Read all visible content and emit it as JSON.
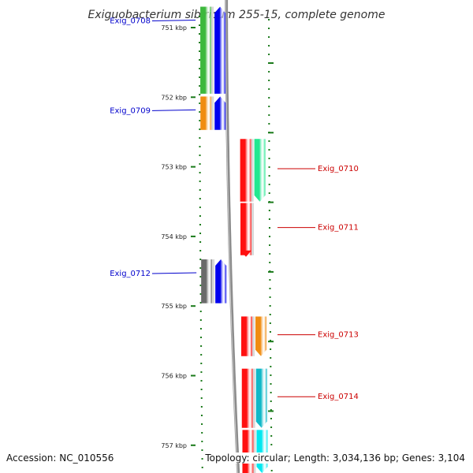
{
  "title": "Exiguobacterium sibiricum 255-15, complete genome",
  "accession": "Accession: NC_010556",
  "summary": "Topology: circular; Length: 3,034,136 bp; Genes: 3,104",
  "colors": {
    "backbone": "#8c8c8c",
    "tick": "#1a7a1a",
    "fwd_label": "#0000cc",
    "rev_label": "#cc0000"
  },
  "scale_labels": [
    "751 kbp",
    "752 kbp",
    "753 kbp",
    "754 kbp",
    "755 kbp",
    "756 kbp",
    "757 kbp"
  ],
  "scale_kbp": [
    751,
    752,
    753,
    754,
    755,
    756,
    757
  ],
  "genes": [
    {
      "name": "Exig_0708",
      "strand": "+",
      "start_kbp": 750.7,
      "end_kbp": 751.95,
      "color": "#3cb83c",
      "cog_color": "#0000ee"
    },
    {
      "name": "Exig_0709",
      "strand": "+",
      "start_kbp": 751.99,
      "end_kbp": 752.47,
      "color": "#f08c10",
      "cog_color": "#0000ee"
    },
    {
      "name": "Exig_0710",
      "strand": "-",
      "start_kbp": 752.6,
      "end_kbp": 753.5,
      "color": "#ff1010",
      "cog_color": "#22e890"
    },
    {
      "name": "Exig_0711",
      "strand": "-",
      "start_kbp": 753.52,
      "end_kbp": 754.27,
      "color": "#ff1010",
      "cog_color": null
    },
    {
      "name": "Exig_0712",
      "strand": "+",
      "start_kbp": 754.33,
      "end_kbp": 754.96,
      "color": "#6a6a6a",
      "cog_color": "#0000ee"
    },
    {
      "name": "Exig_0713",
      "strand": "-",
      "start_kbp": 755.15,
      "end_kbp": 755.72,
      "color": "#ff1010",
      "cog_color": "#f08c10"
    },
    {
      "name": "Exig_0714",
      "strand": "-",
      "start_kbp": 755.9,
      "end_kbp": 756.75,
      "color": "#ff1010",
      "cog_color": "#10b8c8"
    },
    {
      "name": "",
      "strand": "-",
      "start_kbp": 756.78,
      "end_kbp": 757.4,
      "color": "#ff1010",
      "cog_color": "#00e8f0"
    }
  ]
}
